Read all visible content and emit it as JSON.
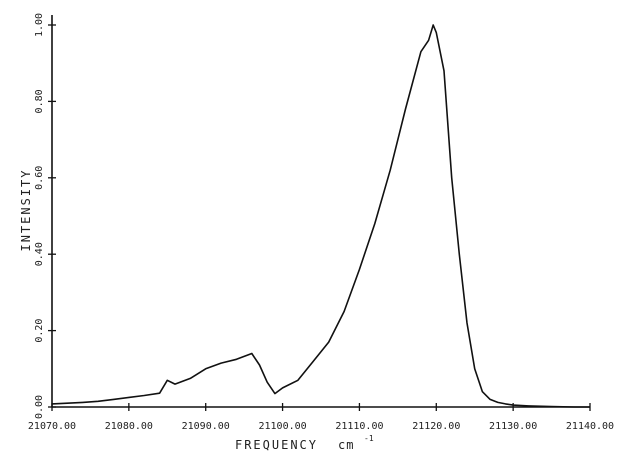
{
  "chart_data": {
    "type": "line",
    "title": "",
    "xlabel": "FREQUENCY",
    "xunit": "cm",
    "xunit_exp": "-1",
    "ylabel": "INTENSITY",
    "xlim": [
      21070,
      21140
    ],
    "ylim": [
      0,
      1.0
    ],
    "x_ticks": [
      21070,
      21080,
      21090,
      21100,
      21110,
      21120,
      21130,
      21140
    ],
    "x_tick_labels": [
      "21070.00",
      "21080.00",
      "21090.00",
      "21100.00",
      "21110.00",
      "21120.00",
      "21130.00",
      "21140.00"
    ],
    "y_ticks": [
      0,
      0.2,
      0.4,
      0.6,
      0.8,
      1.0
    ],
    "y_tick_labels": [
      "0.00",
      "0.20",
      "0.40",
      "0.60",
      "0.80",
      "1.00"
    ],
    "grid": false,
    "series": [
      {
        "x": [
          21070,
          21072,
          21074,
          21076,
          21078,
          21080,
          21082,
          21084,
          21085,
          21086,
          21088,
          21090,
          21092,
          21094,
          21096,
          21097,
          21098,
          21099,
          21100,
          21102,
          21104,
          21106,
          21108,
          21110,
          21112,
          21114,
          21116,
          21118,
          21119,
          21119.6,
          21120,
          21121,
          21122,
          21123,
          21124,
          21125,
          21126,
          21127,
          21128,
          21129,
          21130,
          21132,
          21135,
          21138,
          21140
        ],
        "y": [
          0.008,
          0.01,
          0.012,
          0.015,
          0.02,
          0.025,
          0.03,
          0.036,
          0.07,
          0.06,
          0.075,
          0.1,
          0.115,
          0.125,
          0.14,
          0.11,
          0.065,
          0.035,
          0.05,
          0.07,
          0.12,
          0.17,
          0.25,
          0.36,
          0.48,
          0.62,
          0.78,
          0.93,
          0.96,
          1.0,
          0.98,
          0.88,
          0.6,
          0.4,
          0.22,
          0.1,
          0.04,
          0.02,
          0.012,
          0.008,
          0.005,
          0.003,
          0.001,
          0.0,
          0.0
        ]
      }
    ]
  }
}
